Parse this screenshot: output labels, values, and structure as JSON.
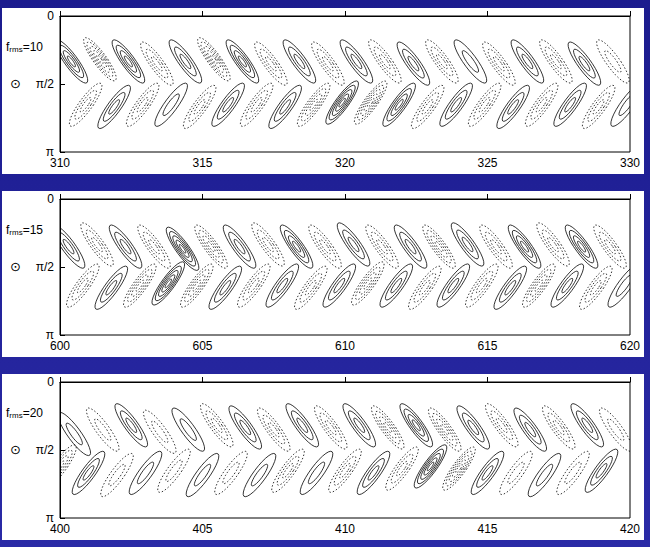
{
  "chart_data": [
    {
      "type": "contour",
      "label": {
        "text": "f",
        "sub": "rms",
        "suffix": "=10"
      },
      "ylabel": "⊙",
      "xlim": [
        310,
        330
      ],
      "xticks": [
        310,
        315,
        320,
        325,
        330
      ],
      "ylim": [
        0,
        3.1416
      ],
      "yticks": [
        0,
        {
          "value": 1.5708,
          "label": "π/2"
        },
        {
          "value": 3.1416,
          "label": "π"
        }
      ],
      "color": "#000000",
      "contours": [
        [
          310.4,
          1.05,
          1,
          4
        ],
        [
          311.4,
          1.0,
          -1,
          5
        ],
        [
          312.4,
          1.05,
          1,
          4
        ],
        [
          313.4,
          1.1,
          -1,
          3
        ],
        [
          314.4,
          1.05,
          1,
          3
        ],
        [
          315.4,
          1.0,
          -1,
          5
        ],
        [
          316.4,
          1.05,
          1,
          4
        ],
        [
          317.4,
          1.1,
          -1,
          3
        ],
        [
          318.4,
          1.05,
          1,
          3
        ],
        [
          319.4,
          1.1,
          -1,
          3
        ],
        [
          320.4,
          1.05,
          1,
          3
        ],
        [
          321.4,
          1.05,
          -1,
          3
        ],
        [
          322.4,
          1.1,
          1,
          3
        ],
        [
          323.4,
          1.05,
          -1,
          3
        ],
        [
          324.4,
          1.05,
          1,
          2
        ],
        [
          325.4,
          1.1,
          -1,
          3
        ],
        [
          326.4,
          1.05,
          1,
          3
        ],
        [
          327.4,
          1.05,
          -1,
          3
        ],
        [
          328.4,
          1.1,
          1,
          3
        ],
        [
          329.4,
          1.05,
          -1,
          2
        ],
        [
          310.9,
          2.05,
          -1,
          3
        ],
        [
          311.9,
          2.1,
          1,
          3
        ],
        [
          312.9,
          2.05,
          -1,
          3
        ],
        [
          313.9,
          2.05,
          1,
          2
        ],
        [
          314.9,
          2.1,
          -1,
          3
        ],
        [
          315.9,
          2.05,
          1,
          3
        ],
        [
          316.9,
          2.05,
          -1,
          3
        ],
        [
          317.9,
          2.1,
          1,
          3
        ],
        [
          318.9,
          2.05,
          -1,
          4
        ],
        [
          319.9,
          2.0,
          1,
          5
        ],
        [
          320.9,
          2.0,
          -1,
          5
        ],
        [
          321.9,
          2.05,
          1,
          4
        ],
        [
          322.9,
          2.1,
          -1,
          3
        ],
        [
          323.9,
          2.05,
          1,
          3
        ],
        [
          324.9,
          2.05,
          -1,
          3
        ],
        [
          325.9,
          2.1,
          1,
          3
        ],
        [
          326.9,
          2.05,
          -1,
          3
        ],
        [
          327.9,
          2.05,
          1,
          3
        ],
        [
          328.9,
          2.1,
          -1,
          3
        ],
        [
          329.9,
          2.05,
          1,
          2
        ]
      ]
    },
    {
      "type": "contour",
      "label": {
        "text": "f",
        "sub": "rms",
        "suffix": "=15"
      },
      "ylabel": "⊙",
      "xlim": [
        600,
        620
      ],
      "xticks": [
        600,
        605,
        610,
        615,
        620
      ],
      "ylim": [
        0,
        3.1416
      ],
      "yticks": [
        0,
        {
          "value": 1.5708,
          "label": "π/2"
        },
        {
          "value": 3.1416,
          "label": "π"
        }
      ],
      "color": "#000000",
      "contours": [
        [
          600.3,
          1.1,
          1,
          3
        ],
        [
          601.3,
          1.05,
          -1,
          3
        ],
        [
          602.3,
          1.1,
          1,
          3
        ],
        [
          603.3,
          1.1,
          -1,
          3
        ],
        [
          604.3,
          1.15,
          1,
          5
        ],
        [
          605.3,
          1.1,
          -1,
          4
        ],
        [
          606.3,
          1.1,
          1,
          3
        ],
        [
          607.3,
          1.05,
          -1,
          3
        ],
        [
          608.3,
          1.1,
          1,
          4
        ],
        [
          609.3,
          1.1,
          -1,
          3
        ],
        [
          610.3,
          1.05,
          1,
          3
        ],
        [
          611.3,
          1.1,
          -1,
          3
        ],
        [
          612.3,
          1.1,
          1,
          3
        ],
        [
          613.3,
          1.1,
          -1,
          4
        ],
        [
          614.3,
          1.05,
          1,
          3
        ],
        [
          615.3,
          1.1,
          -1,
          3
        ],
        [
          616.3,
          1.1,
          1,
          4
        ],
        [
          617.3,
          1.05,
          -1,
          3
        ],
        [
          618.3,
          1.1,
          1,
          4
        ],
        [
          619.3,
          1.1,
          -1,
          3
        ],
        [
          600.8,
          2.0,
          -1,
          3
        ],
        [
          601.8,
          2.05,
          1,
          3
        ],
        [
          602.8,
          2.0,
          -1,
          4
        ],
        [
          603.8,
          1.95,
          1,
          5
        ],
        [
          604.8,
          2.0,
          -1,
          4
        ],
        [
          605.8,
          2.05,
          1,
          3
        ],
        [
          606.8,
          2.0,
          -1,
          3
        ],
        [
          607.8,
          2.0,
          1,
          3
        ],
        [
          608.8,
          2.05,
          -1,
          3
        ],
        [
          609.8,
          2.0,
          1,
          3
        ],
        [
          610.8,
          1.95,
          -1,
          4
        ],
        [
          611.8,
          2.0,
          1,
          3
        ],
        [
          612.8,
          2.05,
          -1,
          3
        ],
        [
          613.8,
          2.0,
          1,
          3
        ],
        [
          614.8,
          2.0,
          -1,
          3
        ],
        [
          615.8,
          2.05,
          1,
          3
        ],
        [
          616.8,
          2.0,
          -1,
          4
        ],
        [
          617.8,
          2.0,
          1,
          3
        ],
        [
          618.8,
          2.05,
          -1,
          3
        ],
        [
          619.8,
          2.0,
          1,
          2
        ]
      ]
    },
    {
      "type": "contour",
      "label": {
        "text": "f",
        "sub": "rms",
        "suffix": "=20"
      },
      "ylabel": "⊙",
      "xlim": [
        400,
        420
      ],
      "xticks": [
        400,
        405,
        410,
        415,
        420
      ],
      "ylim": [
        0,
        3.1416
      ],
      "yticks": [
        0,
        {
          "value": 1.5708,
          "label": "π/2"
        },
        {
          "value": 3.1416,
          "label": "π"
        }
      ],
      "color": "#000000",
      "contours": [
        [
          400.5,
          1.2,
          1,
          2
        ],
        [
          401.5,
          1.1,
          -1,
          2
        ],
        [
          402.5,
          1.0,
          1,
          3
        ],
        [
          403.5,
          1.15,
          -1,
          2
        ],
        [
          404.5,
          1.1,
          1,
          2
        ],
        [
          405.5,
          1.0,
          -1,
          3
        ],
        [
          406.5,
          1.05,
          1,
          3
        ],
        [
          407.5,
          1.1,
          -1,
          3
        ],
        [
          408.5,
          1.0,
          1,
          3
        ],
        [
          409.5,
          1.05,
          -1,
          3
        ],
        [
          410.5,
          1.0,
          1,
          3
        ],
        [
          411.5,
          1.05,
          -1,
          4
        ],
        [
          412.5,
          1.0,
          1,
          4
        ],
        [
          413.5,
          1.1,
          -1,
          4
        ],
        [
          414.5,
          1.05,
          1,
          3
        ],
        [
          415.5,
          1.0,
          -1,
          3
        ],
        [
          416.5,
          1.1,
          1,
          3
        ],
        [
          417.5,
          1.05,
          -1,
          3
        ],
        [
          418.5,
          1.0,
          1,
          3
        ],
        [
          419.5,
          1.1,
          -1,
          2
        ],
        [
          400.0,
          1.95,
          -1,
          4
        ],
        [
          401.0,
          2.1,
          1,
          3
        ],
        [
          402.0,
          2.15,
          -1,
          2
        ],
        [
          403.0,
          2.1,
          1,
          2
        ],
        [
          404.0,
          2.05,
          -1,
          2
        ],
        [
          405.0,
          2.15,
          1,
          2
        ],
        [
          406.0,
          2.1,
          -1,
          2
        ],
        [
          407.0,
          2.15,
          1,
          2
        ],
        [
          408.0,
          2.05,
          -1,
          3
        ],
        [
          409.0,
          2.1,
          1,
          2
        ],
        [
          410.0,
          2.05,
          -1,
          3
        ],
        [
          411.0,
          2.1,
          1,
          3
        ],
        [
          412.0,
          2.0,
          -1,
          3
        ],
        [
          413.0,
          1.95,
          1,
          5
        ],
        [
          414.0,
          2.0,
          -1,
          5
        ],
        [
          415.0,
          2.1,
          1,
          3
        ],
        [
          416.0,
          2.1,
          -1,
          2
        ],
        [
          417.0,
          2.15,
          1,
          2
        ],
        [
          418.0,
          2.1,
          -1,
          2
        ],
        [
          419.0,
          2.05,
          1,
          3
        ]
      ]
    }
  ]
}
